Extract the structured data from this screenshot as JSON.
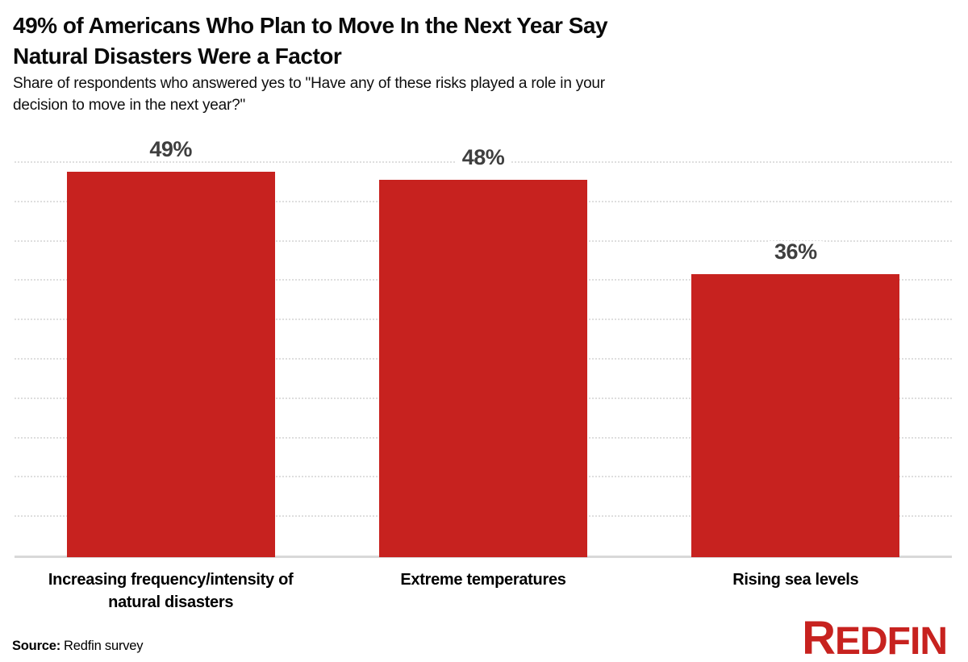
{
  "header": {
    "title_lines": [
      "49% of Americans Who Plan to Move In the Next Year Say",
      "Natural Disasters Were a Factor"
    ],
    "subtitle_lines": [
      "Share of respondents who answered yes to \"Have any of these risks played a role in your",
      "decision to move in the next year?\""
    ]
  },
  "chart_data": {
    "type": "bar",
    "title": "49% of Americans Who Plan to Move In the Next Year Say Natural Disasters Were a Factor",
    "subtitle": "Share of respondents who answered yes to \"Have any of these risks played a role in your decision to move in the next year?\"",
    "categories": [
      "Increasing frequency/intensity of natural disasters",
      "Extreme temperatures",
      "Rising sea levels"
    ],
    "values": [
      49,
      48,
      36
    ],
    "value_labels": [
      "49%",
      "48%",
      "36%"
    ],
    "ylim": [
      0,
      50
    ],
    "grid_step": 5,
    "grid": "horizontal dotted lines every 5%, no y-axis tick labels",
    "legend": "none",
    "bar_color": "#c7221f",
    "value_label_color": "#3f3f3f",
    "gridline_color": "#dedede",
    "baseline_color": "#d8d8d8"
  },
  "footer": {
    "source_label": "Source:",
    "source_text": "Redfin survey",
    "brand": "REDFIN",
    "brand_color": "#c7221f"
  }
}
